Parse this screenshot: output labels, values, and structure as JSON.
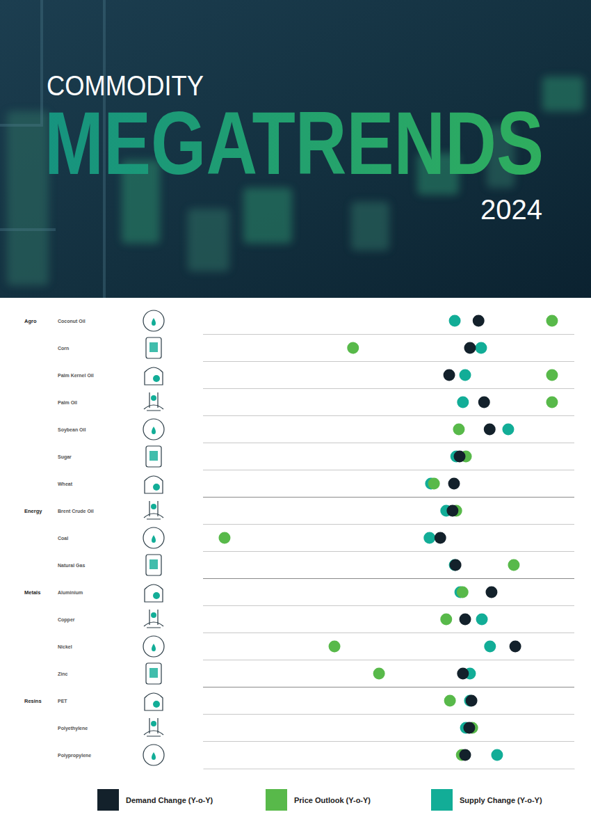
{
  "chart_data": {
    "type": "dot",
    "title_lines": [
      "COMMODITY",
      "MEGATRENDS"
    ],
    "subtitle": "2024",
    "group_labels": [
      "Agro",
      null,
      null,
      null,
      null,
      null,
      null,
      "Energy",
      null,
      null,
      "Metals",
      null,
      null,
      null,
      "Resins",
      null,
      null
    ],
    "categories": [
      "Coconut Oil",
      "Corn",
      "Palm Kernel Oil",
      "Palm Oil",
      "Soybean Oil",
      "Sugar",
      "Wheat",
      "Brent Crude Oil",
      "Coal",
      "Natural Gas",
      "Aluminium",
      "Copper",
      "Nickel",
      "Zinc",
      "PET",
      "Polyethylene",
      "Polypropylene"
    ],
    "series": [
      {
        "name": "Demand Change (Y-o-Y)",
        "color": "#13212b",
        "values": [
          74.2,
          71.9,
          66.3,
          75.7,
          77.2,
          69.1,
          67.6,
          67.2,
          63.9,
          68.0,
          77.7,
          70.6,
          84.1,
          70.0,
          72.3,
          71.7,
          70.6
        ]
      },
      {
        "name": "Price Outlook (Y-o-Y)",
        "color": "#58b94a",
        "values": [
          94.0,
          40.4,
          94.0,
          94.0,
          68.9,
          70.8,
          62.2,
          68.2,
          5.8,
          83.7,
          69.9,
          65.5,
          35.4,
          47.4,
          66.5,
          72.5,
          69.7
        ]
      },
      {
        "name": "Supply Change (Y-o-Y)",
        "color": "#12ad97",
        "values": [
          67.8,
          74.9,
          70.6,
          70.0,
          82.2,
          68.2,
          61.4,
          65.5,
          61.0,
          67.8,
          69.3,
          75.1,
          77.3,
          71.9,
          71.9,
          70.8,
          79.2
        ]
      }
    ],
    "xlim": [
      0,
      100
    ],
    "tick_labels": false,
    "grid": true,
    "legend": "bottom"
  }
}
